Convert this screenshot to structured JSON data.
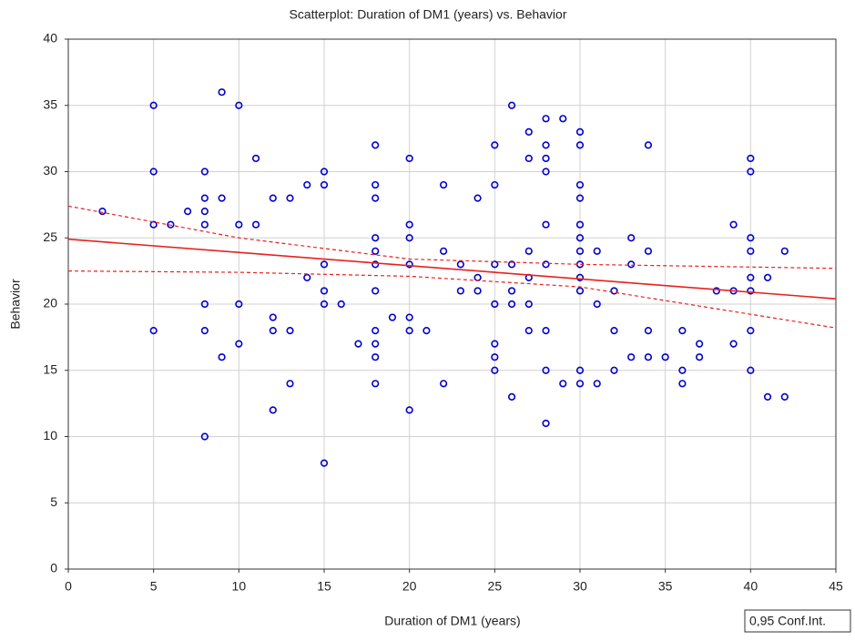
{
  "chart_data": {
    "type": "scatter",
    "title": "Scatterplot: Duration of DM1 (years) vs. Behavior",
    "x_label": "Duration of DM1 (years)",
    "y_label": "Behavior",
    "legend_text": "0,95 Conf.Int.",
    "xlim": [
      0,
      45
    ],
    "xticks": [
      0,
      5,
      10,
      15,
      20,
      25,
      30,
      35,
      40,
      45
    ],
    "ylim": [
      0,
      40
    ],
    "yticks": [
      0,
      5,
      10,
      15,
      20,
      25,
      30,
      35,
      40
    ],
    "grid": true,
    "series": [
      {
        "color": "#0000cc",
        "x": [
          2,
          5,
          5,
          5,
          5,
          6,
          7,
          8,
          8,
          8,
          8,
          8,
          8,
          8,
          9,
          9,
          9,
          10,
          10,
          10,
          10,
          11,
          11,
          12,
          12,
          12,
          12,
          13,
          13,
          13,
          14,
          14,
          15,
          15,
          15,
          15,
          15,
          15,
          16,
          17,
          18,
          18,
          18,
          18,
          18,
          18,
          18,
          18,
          18,
          18,
          18,
          19,
          20,
          20,
          20,
          20,
          20,
          20,
          20,
          21,
          22,
          22,
          22,
          23,
          23,
          24,
          24,
          24,
          25,
          25,
          25,
          25,
          25,
          25,
          25,
          26,
          26,
          26,
          26,
          26,
          27,
          27,
          27,
          27,
          27,
          27,
          28,
          28,
          28,
          28,
          28,
          28,
          28,
          28,
          28,
          29,
          29,
          30,
          30,
          30,
          30,
          30,
          30,
          30,
          30,
          30,
          30,
          30,
          30,
          31,
          31,
          31,
          32,
          32,
          32,
          33,
          33,
          33,
          34,
          34,
          34,
          34,
          35,
          36,
          36,
          36,
          37,
          37,
          38,
          39,
          39,
          39,
          40,
          40,
          40,
          40,
          40,
          40,
          40,
          40,
          41,
          41,
          42,
          42
        ],
        "values": [
          27,
          35,
          30,
          26,
          18,
          26,
          27,
          30,
          28,
          27,
          26,
          20,
          18,
          10,
          36,
          28,
          16,
          35,
          26,
          20,
          17,
          31,
          26,
          28,
          19,
          18,
          12,
          28,
          18,
          14,
          29,
          22,
          30,
          29,
          23,
          21,
          20,
          8,
          20,
          17,
          32,
          29,
          28,
          25,
          24,
          23,
          21,
          18,
          17,
          16,
          14,
          19,
          31,
          26,
          25,
          23,
          19,
          18,
          12,
          18,
          29,
          24,
          14,
          23,
          21,
          28,
          22,
          21,
          32,
          29,
          23,
          20,
          17,
          16,
          15,
          35,
          23,
          21,
          20,
          13,
          33,
          31,
          24,
          22,
          20,
          18,
          34,
          32,
          31,
          30,
          26,
          23,
          18,
          15,
          11,
          34,
          14,
          33,
          32,
          29,
          28,
          26,
          25,
          24,
          23,
          22,
          21,
          15,
          14,
          24,
          20,
          14,
          21,
          18,
          15,
          25,
          23,
          16,
          32,
          24,
          18,
          16,
          16,
          18,
          15,
          14,
          17,
          16,
          21,
          26,
          21,
          17,
          31,
          30,
          25,
          24,
          22,
          21,
          18,
          15,
          22,
          13,
          24,
          13
        ]
      }
    ],
    "fit": {
      "color": "#e8201e",
      "x": [
        0,
        45
      ],
      "values": [
        24.9,
        20.4
      ]
    },
    "conf_upper": {
      "color": "#e8201e",
      "x": [
        0,
        10,
        20,
        30,
        45
      ],
      "values": [
        27.4,
        25.0,
        23.4,
        23.0,
        22.7
      ]
    },
    "conf_lower": {
      "color": "#e8201e",
      "x": [
        0,
        10,
        20,
        30,
        45
      ],
      "values": [
        22.5,
        22.4,
        22.1,
        21.3,
        18.2
      ]
    }
  }
}
